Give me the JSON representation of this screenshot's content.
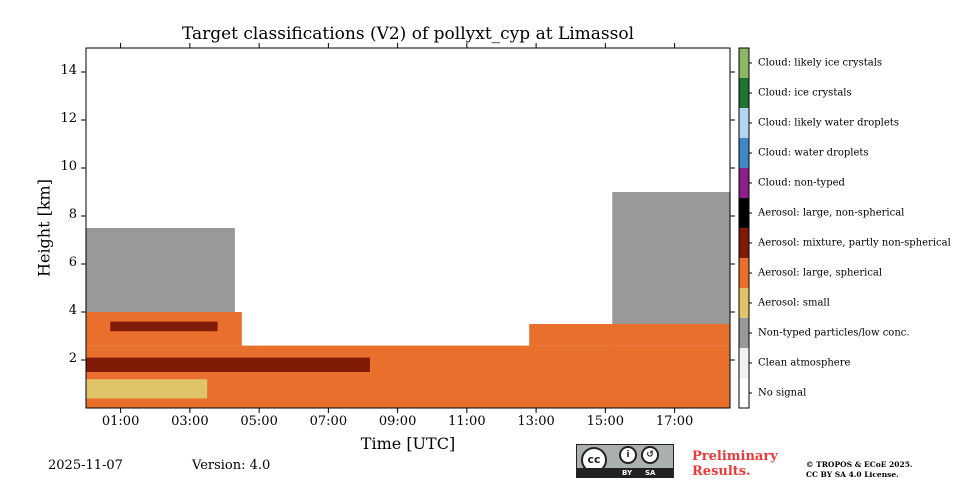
{
  "chart_data": {
    "type": "heatmap",
    "title": "Target classifications (V2) of pollyxt_cyp at Limassol",
    "xlabel": "Time [UTC]",
    "ylabel": "Height [km]",
    "xlim": [
      0,
      18.6
    ],
    "ylim": [
      0,
      15
    ],
    "xticks": [
      1,
      3,
      5,
      7,
      9,
      11,
      13,
      15,
      17
    ],
    "xtick_labels": [
      "01:00",
      "03:00",
      "05:00",
      "07:00",
      "09:00",
      "11:00",
      "13:00",
      "15:00",
      "17:00"
    ],
    "yticks": [
      2,
      4,
      6,
      8,
      10,
      12,
      14
    ],
    "ytick_labels": [
      "2",
      "4",
      "6",
      "8",
      "10",
      "12",
      "14"
    ],
    "classes": [
      {
        "label": "Cloud: likely ice crystals",
        "color": "#8fb567"
      },
      {
        "label": "Cloud: ice crystals",
        "color": "#1a7530"
      },
      {
        "label": "Cloud: likely water droplets",
        "color": "#b5d5f2"
      },
      {
        "label": "Cloud: water droplets",
        "color": "#3f86c4"
      },
      {
        "label": "Cloud: non-typed",
        "color": "#8a1f8c"
      },
      {
        "label": "Aerosol: large, non-spherical",
        "color": "#000000"
      },
      {
        "label": "Aerosol: mixture, partly non-spherical",
        "color": "#7f1a06"
      },
      {
        "label": "Aerosol: large, spherical",
        "color": "#e8702c"
      },
      {
        "label": "Aerosol: small",
        "color": "#dfc46a"
      },
      {
        "label": "Non-typed particles/low conc.",
        "color": "#999999"
      },
      {
        "label": "Clean atmosphere",
        "color": "#f0f0f0"
      },
      {
        "label": "No signal",
        "color": "#ffffff"
      }
    ],
    "layers": [
      {
        "class": "Aerosol: large, spherical",
        "t_start": 0,
        "t_end": 18.6,
        "h_bottom": 0,
        "h_top": 2.6
      },
      {
        "class": "Aerosol: small",
        "t_start": 0,
        "t_end": 3.5,
        "h_bottom": 0.4,
        "h_top": 1.2
      },
      {
        "class": "Aerosol: mixture, partly non-spherical",
        "t_start": 0,
        "t_end": 8.2,
        "h_bottom": 1.5,
        "h_top": 2.1
      },
      {
        "class": "Aerosol: large, spherical",
        "t_start": 0,
        "t_end": 4.5,
        "h_bottom": 2.6,
        "h_top": 4.0
      },
      {
        "class": "Aerosol: mixture, partly non-spherical",
        "t_start": 0.7,
        "t_end": 3.8,
        "h_bottom": 3.2,
        "h_top": 3.6
      },
      {
        "class": "Non-typed particles/low conc.",
        "t_start": 0,
        "t_end": 4.3,
        "h_bottom": 4.0,
        "h_top": 7.5
      },
      {
        "class": "Non-typed particles/low conc.",
        "t_start": 15.2,
        "t_end": 18.6,
        "h_bottom": 2.6,
        "h_top": 9.0
      },
      {
        "class": "Aerosol: large, spherical",
        "t_start": 12.8,
        "t_end": 18.6,
        "h_bottom": 2.6,
        "h_top": 3.5
      }
    ]
  },
  "colorbar_labels": [
    "Cloud: likely ice crystals",
    "Cloud: ice crystals",
    "Cloud: likely water droplets",
    "Cloud: water droplets",
    "Cloud: non-typed",
    "Aerosol: large, non-spherical",
    "Aerosol: mixture, partly non-spherical",
    "Aerosol: large, spherical",
    "Aerosol: small",
    "Non-typed particles/low conc.",
    "Clean atmosphere",
    "No signal"
  ],
  "footer": {
    "date": "2025-11-07",
    "version": "Version: 4.0",
    "license_badge": {
      "cc": "cc",
      "by": "BY",
      "sa": "SA"
    },
    "preliminary_line1": "Preliminary",
    "preliminary_line2": "Results.",
    "copyright_line1": "© TROPOS & ECoE 2025.",
    "copyright_line2": "CC BY SA 4.0 License."
  }
}
